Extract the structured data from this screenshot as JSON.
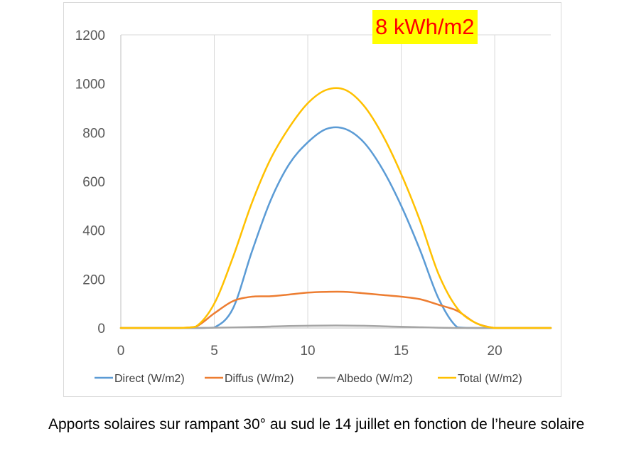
{
  "chart_data": {
    "type": "line",
    "title": "",
    "xlabel": "",
    "ylabel": "",
    "xlim": [
      0,
      23
    ],
    "ylim": [
      0,
      1200
    ],
    "xticks": [
      0,
      5,
      10,
      15,
      20
    ],
    "yticks": [
      0,
      200,
      400,
      600,
      800,
      1000,
      1200
    ],
    "grid": "vertical gridlines at x ticks, horizontal gridline at top",
    "legend_position": "bottom",
    "annotation": "8 kWh/m2",
    "series": [
      {
        "name": "Direct (W/m2)",
        "color": "#5b9bd5",
        "x": [
          0,
          1,
          2,
          3,
          4,
          5,
          6,
          7,
          8,
          9,
          10,
          11,
          12,
          13,
          14,
          15,
          16,
          17,
          18,
          19,
          20,
          21,
          22,
          23
        ],
        "y": [
          0,
          0,
          0,
          0,
          0,
          2,
          80,
          310,
          520,
          670,
          760,
          815,
          815,
          760,
          650,
          500,
          320,
          120,
          3,
          0,
          0,
          0,
          0,
          0
        ]
      },
      {
        "name": "Diffus (W/m2)",
        "color": "#ed7d31",
        "x": [
          0,
          1,
          2,
          3,
          4,
          5,
          6,
          7,
          8,
          9,
          10,
          11,
          12,
          13,
          14,
          15,
          16,
          17,
          18,
          19,
          20,
          21,
          22,
          23
        ],
        "y": [
          0,
          0,
          0,
          0,
          5,
          60,
          110,
          128,
          130,
          137,
          145,
          148,
          148,
          142,
          135,
          128,
          118,
          95,
          70,
          20,
          0,
          0,
          0,
          0
        ]
      },
      {
        "name": "Albedo (W/m2)",
        "color": "#a5a5a5",
        "x": [
          0,
          1,
          2,
          3,
          4,
          5,
          6,
          7,
          8,
          9,
          10,
          11,
          12,
          13,
          14,
          15,
          16,
          17,
          18,
          19,
          20,
          21,
          22,
          23
        ],
        "y": [
          0,
          0,
          0,
          0,
          0,
          1,
          2,
          4,
          6,
          8,
          9,
          10,
          10,
          9,
          7,
          5,
          3,
          1,
          0,
          0,
          0,
          0,
          0,
          0
        ]
      },
      {
        "name": "Total (W/m2)",
        "color": "#ffc000",
        "x": [
          0,
          1,
          2,
          3,
          4,
          5,
          6,
          7,
          8,
          9,
          10,
          11,
          12,
          13,
          14,
          15,
          16,
          17,
          18,
          19,
          20,
          21,
          22,
          23
        ],
        "y": [
          0,
          0,
          0,
          0,
          5,
          100,
          290,
          510,
          690,
          820,
          920,
          975,
          975,
          910,
          790,
          630,
          440,
          220,
          80,
          20,
          0,
          0,
          0,
          0
        ]
      }
    ]
  },
  "caption": "Apports solaires sur rampant 30° au sud le 14 juillet en fonction de l’heure solaire"
}
